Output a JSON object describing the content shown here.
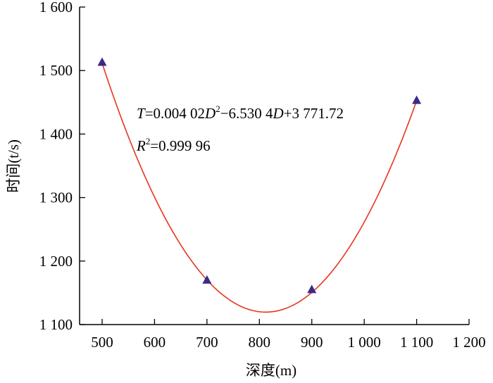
{
  "chart_data": {
    "type": "scatter",
    "xlabel": "深度(m)",
    "ylabel": "时间(t/s)",
    "xlim": [
      450,
      1200
    ],
    "ylim": [
      1100,
      1600
    ],
    "x_ticks": [
      500,
      600,
      700,
      800,
      900,
      1000,
      1100,
      1200
    ],
    "x_tick_labels": [
      "500",
      "600",
      "700",
      "800",
      "900",
      "1 000",
      "1 100",
      "1 200"
    ],
    "y_ticks": [
      1100,
      1200,
      1300,
      1400,
      1500,
      1600
    ],
    "y_tick_labels": [
      "1 100",
      "1 200",
      "1 300",
      "1 400",
      "1 500",
      "1 600"
    ],
    "series": [
      {
        "marker": "triangle",
        "color": "#3b2a86",
        "points": [
          {
            "x": 500,
            "y": 1513
          },
          {
            "x": 700,
            "y": 1170
          },
          {
            "x": 900,
            "y": 1155
          },
          {
            "x": 1100,
            "y": 1453
          }
        ]
      }
    ],
    "fit": {
      "color": "#e8341f",
      "coefficients": [
        0.00402,
        -6.5304,
        3771.72
      ],
      "x_range": [
        500,
        1100
      ],
      "equation": {
        "T": "T",
        "eq1": "=0.004 02",
        "D1": "D",
        "sup1": "2",
        "eq2": "−6.530 4",
        "D2": "D",
        "eq3": "+3 771.72"
      },
      "r2": {
        "R": "R",
        "sup": "2",
        "value": "=0.999 96"
      }
    }
  }
}
